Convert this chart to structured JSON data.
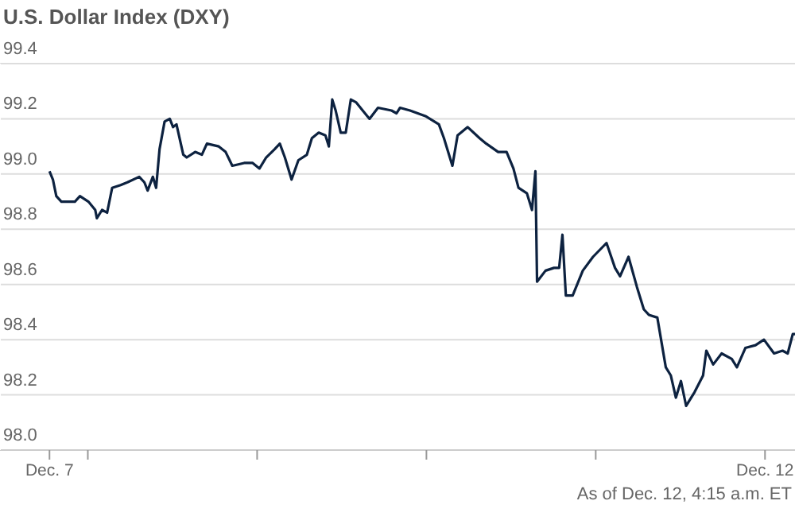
{
  "chart_data": {
    "type": "line",
    "title": "U.S. Dollar Index (DXY)",
    "annotations": [
      "As of Dec. 12, 4:15 a.m. ET"
    ],
    "series": [
      {
        "color": "#0d2240",
        "x": [
          "--12-07T18:34",
          "--12-07T19:03",
          "--12-07T19:32",
          "--12-07T20:15",
          "--12-07T20:58",
          "--12-07T22:10",
          "--12-07T22:53",
          "--12-08T00:05",
          "--12-08T01:03",
          "--12-08T01:17",
          "--12-08T02:01",
          "--12-08T02:44",
          "--12-08T03:27",
          "--12-08T04:39",
          "--12-08T05:37",
          "--12-08T07:17",
          "--12-08T08:01",
          "--12-08T08:29",
          "--12-08T09:13",
          "--12-08T09:41",
          "--12-08T10:10",
          "--12-08T10:53",
          "--12-08T11:37",
          "--12-08T12:05",
          "--12-08T12:34",
          "--12-08T13:32",
          "--12-08T14:01",
          "--12-08T15:13",
          "--12-08T16:10",
          "--12-08T16:53",
          "--12-08T18:34",
          "--12-08T19:32",
          "--12-08T20:29",
          "--12-08T22:10",
          "--12-08T23:22",
          "--12-09T00:20",
          "--12-09T01:17",
          "--12-09T02:29",
          "--12-09T03:13",
          "--12-09T03:56",
          "--12-09T04:53",
          "--12-09T05:51",
          "--12-09T07:03",
          "--12-09T07:46",
          "--12-09T08:44",
          "--12-09T09:41",
          "--12-09T10:10",
          "--12-09T10:39",
          "--12-09T11:08",
          "--12-09T11:51",
          "--12-09T12:34",
          "--12-09T13:17",
          "--12-09T14:01",
          "--12-09T14:58",
          "--12-09T15:56",
          "--12-09T17:08",
          "--12-09T19:03",
          "--12-09T19:46",
          "--12-09T20:15",
          "--12-09T21:41",
          "--12-09T23:51",
          "--12-10T01:46",
          "--12-10T02:29",
          "--12-10T03:41",
          "--12-10T04:25",
          "--12-10T05:51",
          "--12-10T07:32",
          "--12-10T08:29",
          "--12-10T10:10",
          "--12-10T11:22",
          "--12-10T12:20",
          "--12-10T13:03",
          "--12-10T14:15",
          "--12-10T14:58",
          "--12-10T15:27",
          "--12-10T15:41",
          "--12-10T16:53",
          "--12-10T18:05",
          "--12-10T18:49",
          "--12-10T19:17",
          "--12-10T19:46",
          "--12-10T20:44",
          "--12-10T22:10",
          "--12-10T23:37",
          "--12-11T01:32",
          "--12-11T02:44",
          "--12-11T03:27",
          "--12-11T04:39",
          "--12-11T05:51",
          "--12-11T06:49",
          "--12-11T07:32",
          "--12-11T08:44",
          "--12-11T09:56",
          "--12-11T10:39",
          "--12-11T11:22",
          "--12-11T12:05",
          "--12-11T12:49",
          "--12-11T14:01",
          "--12-11T15:13",
          "--12-11T15:41",
          "--12-11T16:39",
          "--12-11T17:51",
          "--12-11T19:17",
          "--12-11T20:01",
          "--12-11T21:13",
          "--12-11T22:39",
          "--12-11T23:51",
          "--12-12T01:17",
          "--12-12T02:29",
          "--12-12T03:13",
          "--12-12T03:56",
          "--12-12T04:15"
        ],
        "values": [
          99.01,
          98.98,
          98.92,
          98.9,
          98.9,
          98.9,
          98.92,
          98.9,
          98.87,
          98.84,
          98.87,
          98.86,
          98.95,
          98.96,
          98.97,
          98.99,
          98.97,
          98.94,
          98.99,
          98.95,
          99.09,
          99.19,
          99.2,
          99.17,
          99.18,
          99.07,
          99.06,
          99.08,
          99.07,
          99.11,
          99.1,
          99.08,
          99.03,
          99.04,
          99.04,
          99.02,
          99.06,
          99.09,
          99.11,
          99.06,
          98.98,
          99.05,
          99.07,
          99.13,
          99.15,
          99.14,
          99.1,
          99.27,
          99.23,
          99.15,
          99.15,
          99.27,
          99.26,
          99.23,
          99.2,
          99.24,
          99.23,
          99.22,
          99.24,
          99.23,
          99.21,
          99.18,
          99.13,
          99.03,
          99.14,
          99.17,
          99.13,
          99.11,
          99.08,
          99.08,
          99.02,
          98.95,
          98.93,
          98.87,
          99.01,
          98.61,
          98.65,
          98.66,
          98.66,
          98.78,
          98.56,
          98.56,
          98.65,
          98.7,
          98.75,
          98.66,
          98.63,
          98.7,
          98.59,
          98.51,
          98.49,
          98.48,
          98.3,
          98.27,
          98.19,
          98.25,
          98.16,
          98.21,
          98.27,
          98.36,
          98.31,
          98.35,
          98.33,
          98.3,
          98.37,
          98.38,
          98.4,
          98.35,
          98.36,
          98.35,
          98.42,
          98.42
        ]
      }
    ],
    "xlim": [
      "--12-07T11:33",
      "--12-12T04:15"
    ],
    "xticks": [
      {
        "value": "--12-07T18:34",
        "label": "Dec. 7"
      },
      {
        "value": "--12-08",
        "label": null
      },
      {
        "value": "--12-09",
        "label": null
      },
      {
        "value": "--12-10",
        "label": null
      },
      {
        "value": "--12-11",
        "label": null
      },
      {
        "value": "--12-12",
        "label": "Dec. 12"
      }
    ],
    "ylim": [
      98.0,
      99.4
    ],
    "yticks": [
      {
        "value": 98.0,
        "label": "98.0"
      },
      {
        "value": 98.2,
        "label": "98.2"
      },
      {
        "value": 98.4,
        "label": "98.4"
      },
      {
        "value": 98.6,
        "label": "98.6"
      },
      {
        "value": 98.8,
        "label": "98.8"
      },
      {
        "value": 99.0,
        "label": "99.0"
      },
      {
        "value": 99.2,
        "label": "99.2"
      },
      {
        "value": 99.4,
        "label": "99.4"
      }
    ],
    "grid": "y",
    "legend": false,
    "marker": "none",
    "line_style": "solid"
  }
}
